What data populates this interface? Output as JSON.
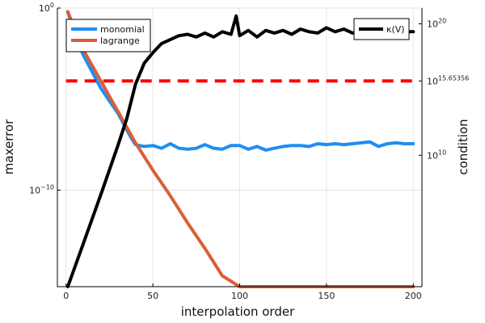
{
  "chart_data": {
    "type": "line",
    "xlabel": "interpolation order",
    "ylabel_left": "maxerror",
    "ylabel_right": "condition",
    "x_ticks": [
      0,
      50,
      100,
      150,
      200
    ],
    "xlim": [
      -5,
      205
    ],
    "left_axis": {
      "scale": "log10",
      "ylim_exp": [
        -15.3,
        0
      ],
      "ticks": [
        {
          "exp": 0,
          "base": "10",
          "sup": "0"
        },
        {
          "exp": -10,
          "base": "10",
          "sup": "−10"
        }
      ]
    },
    "right_axis": {
      "scale": "log10",
      "ylim_exp": [
        0,
        21.2
      ],
      "ticks": [
        {
          "exp": 20,
          "base": "10",
          "sup": "20"
        },
        {
          "exp": 15.65356,
          "base": "10",
          "sup": "15.65356"
        },
        {
          "exp": 10,
          "base": "10",
          "sup": "10"
        }
      ]
    },
    "grid": true,
    "legend_left": {
      "placement": "top-left",
      "entries": [
        "monomial",
        "lagrange"
      ]
    },
    "legend_right": {
      "placement": "top-right",
      "entries": [
        "κ(V)"
      ]
    },
    "series": [
      {
        "name": "monomial",
        "axis": "left",
        "color": "#1f8ef1",
        "points": [
          [
            1,
            -0.2
          ],
          [
            5,
            -1.5
          ],
          [
            10,
            -2.6
          ],
          [
            15,
            -3.5
          ],
          [
            20,
            -4.4
          ],
          [
            25,
            -5.1
          ],
          [
            30,
            -5.8
          ],
          [
            35,
            -6.7
          ],
          [
            38,
            -7.2
          ],
          [
            40,
            -7.5
          ],
          [
            45,
            -7.6
          ],
          [
            50,
            -7.55
          ],
          [
            55,
            -7.7
          ],
          [
            60,
            -7.45
          ],
          [
            65,
            -7.7
          ],
          [
            70,
            -7.75
          ],
          [
            75,
            -7.7
          ],
          [
            80,
            -7.5
          ],
          [
            85,
            -7.7
          ],
          [
            90,
            -7.75
          ],
          [
            95,
            -7.55
          ],
          [
            100,
            -7.55
          ],
          [
            105,
            -7.75
          ],
          [
            110,
            -7.6
          ],
          [
            115,
            -7.8
          ],
          [
            120,
            -7.7
          ],
          [
            125,
            -7.6
          ],
          [
            130,
            -7.55
          ],
          [
            135,
            -7.55
          ],
          [
            140,
            -7.6
          ],
          [
            145,
            -7.45
          ],
          [
            150,
            -7.5
          ],
          [
            155,
            -7.45
          ],
          [
            160,
            -7.5
          ],
          [
            165,
            -7.45
          ],
          [
            170,
            -7.4
          ],
          [
            175,
            -7.35
          ],
          [
            180,
            -7.6
          ],
          [
            185,
            -7.45
          ],
          [
            190,
            -7.4
          ],
          [
            195,
            -7.45
          ],
          [
            200,
            -7.45
          ]
        ]
      },
      {
        "name": "lagrange",
        "axis": "left",
        "color": "#d95f39",
        "points": [
          [
            1,
            -0.2
          ],
          [
            10,
            -2.3
          ],
          [
            20,
            -4.0
          ],
          [
            30,
            -5.7
          ],
          [
            40,
            -7.4
          ],
          [
            50,
            -8.9
          ],
          [
            60,
            -10.3
          ],
          [
            70,
            -11.8
          ],
          [
            80,
            -13.2
          ],
          [
            90,
            -14.7
          ],
          [
            100,
            -16.2
          ],
          [
            110,
            -17.6
          ],
          [
            120,
            -19.0
          ],
          [
            125,
            -19.7
          ],
          [
            130,
            -19.9
          ],
          [
            135,
            -20.0
          ],
          [
            140,
            -19.9
          ],
          [
            150,
            -19.9
          ],
          [
            160,
            -19.8
          ],
          [
            170,
            -19.9
          ],
          [
            180,
            -19.8
          ],
          [
            190,
            -19.8
          ],
          [
            200,
            -19.8
          ]
        ]
      },
      {
        "name": "κ(V)",
        "axis": "right",
        "color": "#000000",
        "points": [
          [
            1,
            0.0
          ],
          [
            10,
            3.3
          ],
          [
            20,
            7.0
          ],
          [
            30,
            10.8
          ],
          [
            35,
            12.8
          ],
          [
            40,
            15.4
          ],
          [
            45,
            17.0
          ],
          [
            50,
            17.8
          ],
          [
            55,
            18.5
          ],
          [
            60,
            18.8
          ],
          [
            65,
            19.1
          ],
          [
            70,
            19.2
          ],
          [
            75,
            19.0
          ],
          [
            80,
            19.3
          ],
          [
            85,
            19.0
          ],
          [
            90,
            19.4
          ],
          [
            95,
            19.2
          ],
          [
            98,
            20.6
          ],
          [
            100,
            19.1
          ],
          [
            105,
            19.5
          ],
          [
            110,
            19.0
          ],
          [
            115,
            19.5
          ],
          [
            120,
            19.3
          ],
          [
            125,
            19.5
          ],
          [
            130,
            19.2
          ],
          [
            135,
            19.6
          ],
          [
            140,
            19.4
          ],
          [
            145,
            19.3
          ],
          [
            150,
            19.7
          ],
          [
            155,
            19.4
          ],
          [
            160,
            19.6
          ],
          [
            165,
            19.3
          ],
          [
            170,
            19.4
          ],
          [
            175,
            19.5
          ],
          [
            180,
            19.3
          ],
          [
            185,
            19.4
          ],
          [
            190,
            19.5
          ],
          [
            195,
            19.4
          ],
          [
            200,
            19.4
          ]
        ]
      },
      {
        "name": "",
        "axis": "right",
        "color": "#ff0000",
        "dashed": true,
        "points": [
          [
            0,
            15.65356
          ],
          [
            200,
            15.65356
          ]
        ]
      }
    ]
  }
}
